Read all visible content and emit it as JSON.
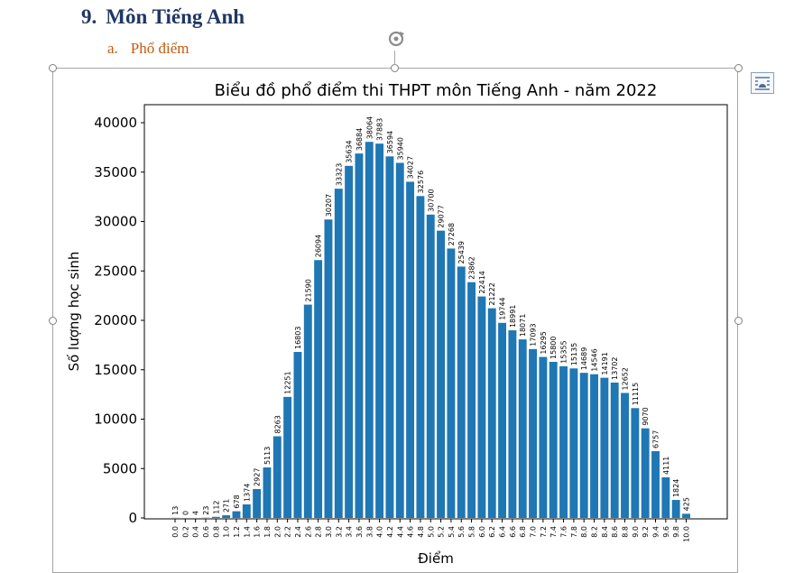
{
  "document": {
    "heading": {
      "number": "9.",
      "text": "Môn Tiếng Anh"
    },
    "subheading": {
      "letter": "a.",
      "text": "Phổ điểm"
    }
  },
  "toolbar": {
    "rotate_icon": "rotate-icon",
    "layout_options_icon": "layout-options-icon"
  },
  "colors": {
    "bar": "#1f77b4",
    "heading": "#1f3763",
    "subheading": "#c55a11"
  },
  "chart_data": {
    "type": "bar",
    "title": "Biểu đồ phổ điểm thi THPT môn Tiếng Anh - năm 2022",
    "xlabel": "Điểm",
    "ylabel": "Số lượng học sinh",
    "ylim": [
      0,
      42000
    ],
    "yticks": [
      0,
      5000,
      10000,
      15000,
      20000,
      25000,
      30000,
      35000,
      40000
    ],
    "categories": [
      "0.0",
      "0.2",
      "0.4",
      "0.6",
      "0.8",
      "1.0",
      "1.2",
      "1.4",
      "1.6",
      "1.8",
      "2.0",
      "2.2",
      "2.4",
      "2.6",
      "2.8",
      "3.0",
      "3.2",
      "3.4",
      "3.6",
      "3.8",
      "4.0",
      "4.2",
      "4.4",
      "4.6",
      "4.8",
      "5.0",
      "5.2",
      "5.4",
      "5.6",
      "5.8",
      "6.0",
      "6.2",
      "6.4",
      "6.6",
      "6.8",
      "7.0",
      "7.2",
      "7.4",
      "7.6",
      "7.8",
      "8.0",
      "8.2",
      "8.4",
      "8.6",
      "8.8",
      "9.0",
      "9.2",
      "9.4",
      "9.6",
      "9.8",
      "10.0"
    ],
    "values": [
      13,
      0,
      4,
      23,
      112,
      271,
      678,
      1374,
      2927,
      5113,
      8263,
      12251,
      16803,
      21590,
      26094,
      30207,
      33323,
      35634,
      36884,
      38064,
      37883,
      36594,
      35940,
      34027,
      32576,
      30700,
      29077,
      27268,
      25439,
      23862,
      22414,
      21222,
      19744,
      18991,
      18071,
      17093,
      16295,
      15800,
      15355,
      15135,
      14689,
      14546,
      14191,
      13702,
      12652,
      11115,
      9070,
      6757,
      4111,
      1824,
      425
    ],
    "grid": false,
    "legend": "none"
  }
}
